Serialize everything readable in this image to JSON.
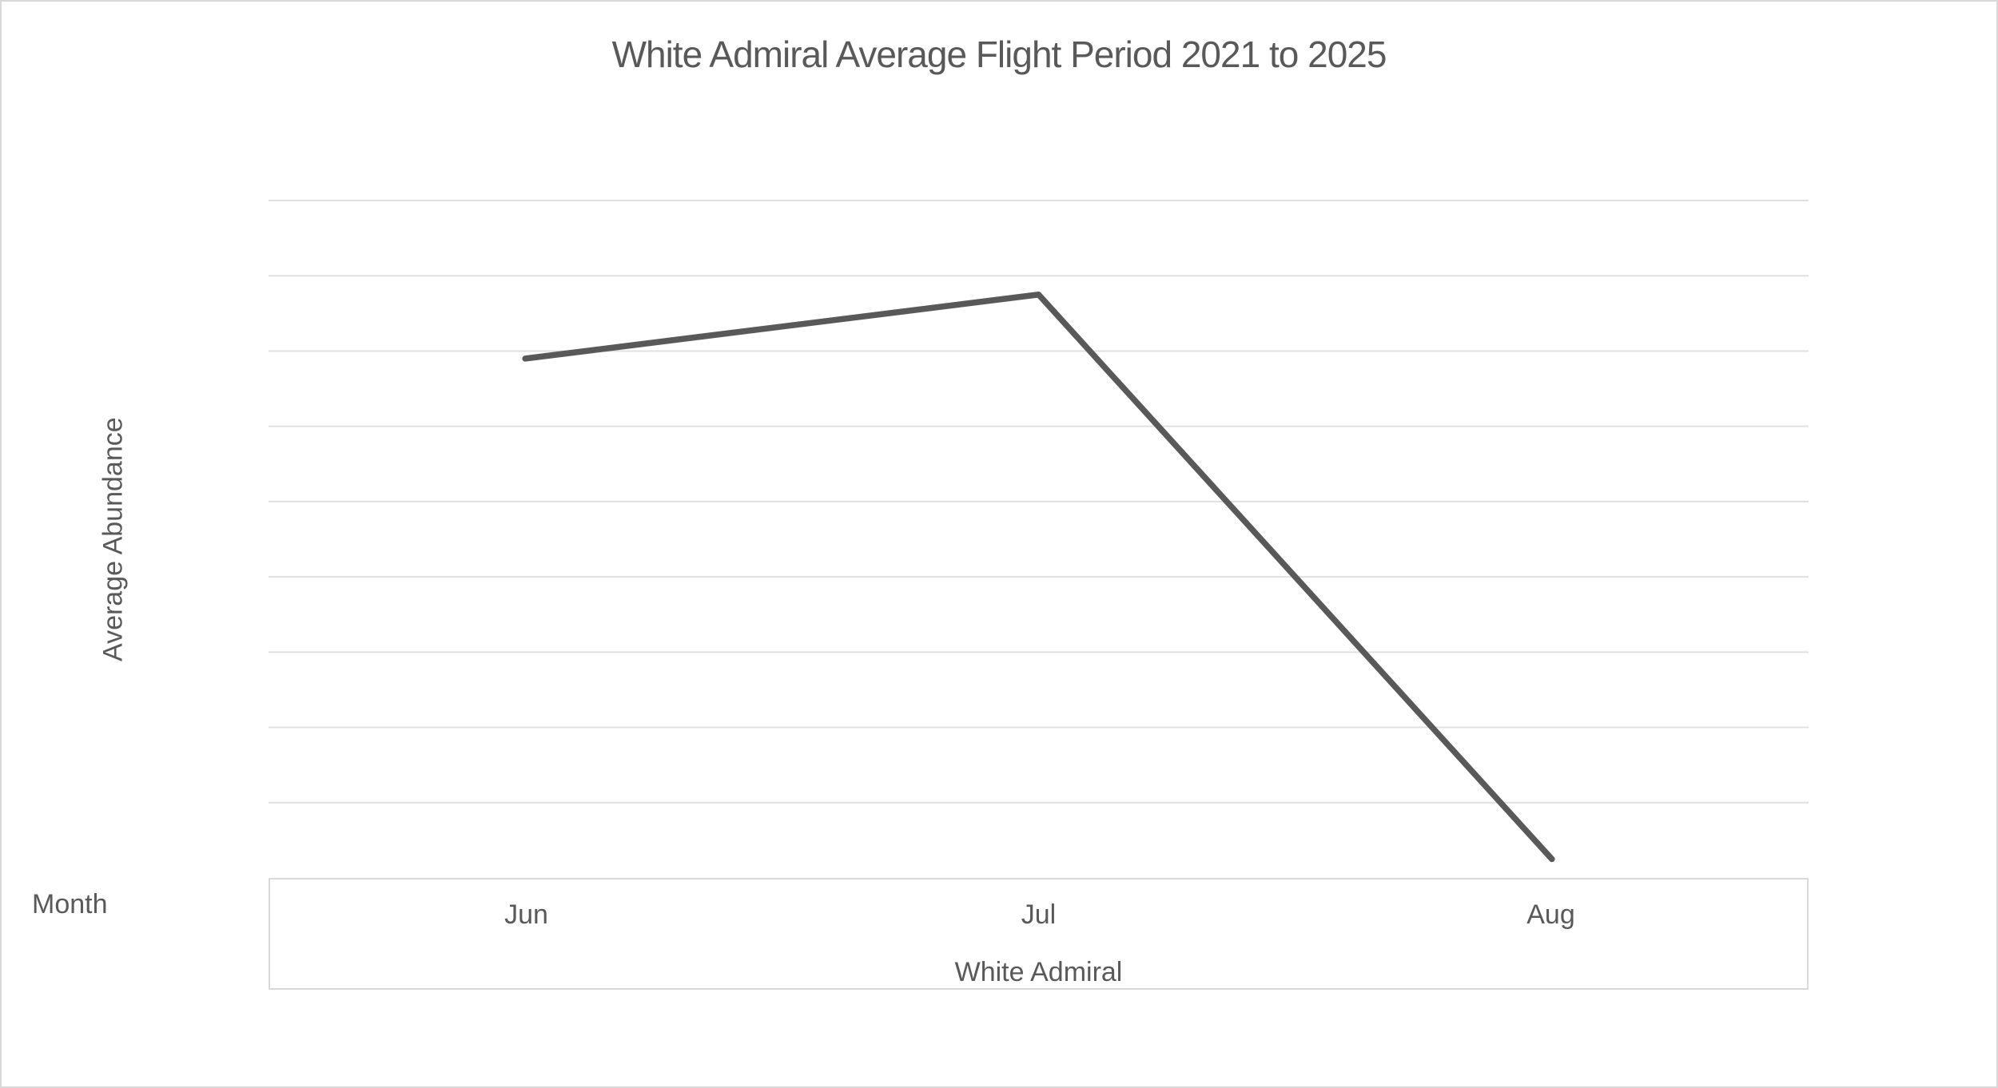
{
  "chart_data": {
    "type": "line",
    "title": "White Admiral Average Flight Period 2021 to 2025",
    "xlabel": "Month",
    "ylabel": "Average Abundance",
    "categories": [
      "Jun",
      "Jul",
      "Aug"
    ],
    "series": [
      {
        "name": "White Admiral",
        "values": [
          6.9,
          7.75,
          0.25
        ]
      }
    ],
    "ylim": [
      0,
      9
    ],
    "gridline_count": 9,
    "y_tick_labels": [],
    "y_axis_unlabeled": true,
    "grid": "horizontal",
    "legend_position": "none"
  },
  "colors": {
    "text": "#595959",
    "series_line": "#595959",
    "gridline": "#E0E0E0",
    "axis_border": "#D9D9D9",
    "background": "#FFFFFF"
  }
}
